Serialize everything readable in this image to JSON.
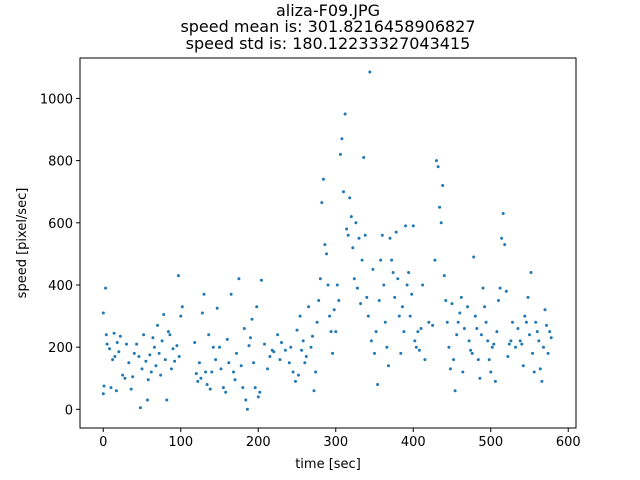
{
  "chart_data": {
    "type": "scatter",
    "title_lines": [
      "aliza-F09.JPG",
      "speed mean is: 301.8216458906827",
      "speed std is: 180.12233327043415"
    ],
    "xlabel": "time [sec]",
    "ylabel": "speed [pixel/sec]",
    "xlim": [
      -30,
      610
    ],
    "ylim": [
      -60,
      1130
    ],
    "xticks": [
      0,
      100,
      200,
      300,
      400,
      500,
      600
    ],
    "yticks": [
      0,
      200,
      400,
      600,
      800,
      1000
    ],
    "grid": false,
    "marker_color": "#1f77b4",
    "series": [
      {
        "points": [
          [
            0,
            50
          ],
          [
            0,
            310
          ],
          [
            1,
            75
          ],
          [
            3,
            390
          ],
          [
            4,
            240
          ],
          [
            5,
            210
          ],
          [
            8,
            195
          ],
          [
            10,
            70
          ],
          [
            12,
            160
          ],
          [
            14,
            245
          ],
          [
            15,
            170
          ],
          [
            17,
            60
          ],
          [
            18,
            215
          ],
          [
            20,
            185
          ],
          [
            22,
            235
          ],
          [
            25,
            110
          ],
          [
            28,
            100
          ],
          [
            30,
            210
          ],
          [
            33,
            150
          ],
          [
            36,
            65
          ],
          [
            38,
            105
          ],
          [
            40,
            180
          ],
          [
            43,
            210
          ],
          [
            46,
            170
          ],
          [
            48,
            5
          ],
          [
            50,
            130
          ],
          [
            52,
            240
          ],
          [
            55,
            155
          ],
          [
            57,
            30
          ],
          [
            58,
            95
          ],
          [
            60,
            175
          ],
          [
            62,
            120
          ],
          [
            64,
            230
          ],
          [
            66,
            200
          ],
          [
            68,
            140
          ],
          [
            70,
            270
          ],
          [
            72,
            180
          ],
          [
            74,
            110
          ],
          [
            76,
            220
          ],
          [
            78,
            305
          ],
          [
            80,
            160
          ],
          [
            82,
            30
          ],
          [
            84,
            250
          ],
          [
            86,
            240
          ],
          [
            88,
            130
          ],
          [
            90,
            195
          ],
          [
            92,
            155
          ],
          [
            95,
            205
          ],
          [
            97,
            430
          ],
          [
            98,
            170
          ],
          [
            100,
            300
          ],
          [
            102,
            330
          ],
          [
            118,
            215
          ],
          [
            120,
            115
          ],
          [
            122,
            90
          ],
          [
            124,
            150
          ],
          [
            126,
            100
          ],
          [
            128,
            310
          ],
          [
            130,
            370
          ],
          [
            132,
            120
          ],
          [
            134,
            80
          ],
          [
            136,
            240
          ],
          [
            138,
            65
          ],
          [
            140,
            120
          ],
          [
            142,
            200
          ],
          [
            145,
            160
          ],
          [
            147,
            325
          ],
          [
            150,
            200
          ],
          [
            152,
            130
          ],
          [
            155,
            70
          ],
          [
            158,
            55
          ],
          [
            160,
            225
          ],
          [
            162,
            150
          ],
          [
            165,
            370
          ],
          [
            168,
            120
          ],
          [
            170,
            95
          ],
          [
            172,
            180
          ],
          [
            175,
            420
          ],
          [
            178,
            140
          ],
          [
            180,
            70
          ],
          [
            182,
            260
          ],
          [
            184,
            30
          ],
          [
            186,
            0
          ],
          [
            188,
            205
          ],
          [
            190,
            230
          ],
          [
            192,
            290
          ],
          [
            194,
            150
          ],
          [
            196,
            70
          ],
          [
            198,
            330
          ],
          [
            200,
            40
          ],
          [
            202,
            55
          ],
          [
            204,
            415
          ],
          [
            208,
            210
          ],
          [
            212,
            130
          ],
          [
            215,
            170
          ],
          [
            218,
            190
          ],
          [
            220,
            185
          ],
          [
            225,
            240
          ],
          [
            228,
            160
          ],
          [
            230,
            215
          ],
          [
            235,
            190
          ],
          [
            240,
            150
          ],
          [
            242,
            200
          ],
          [
            245,
            120
          ],
          [
            248,
            90
          ],
          [
            250,
            255
          ],
          [
            252,
            110
          ],
          [
            254,
            300
          ],
          [
            256,
            190
          ],
          [
            258,
            220
          ],
          [
            260,
            150
          ],
          [
            262,
            170
          ],
          [
            265,
            330
          ],
          [
            268,
            200
          ],
          [
            270,
            235
          ],
          [
            272,
            60
          ],
          [
            274,
            120
          ],
          [
            276,
            280
          ],
          [
            278,
            350
          ],
          [
            280,
            420
          ],
          [
            282,
            665
          ],
          [
            284,
            740
          ],
          [
            286,
            530
          ],
          [
            288,
            500
          ],
          [
            290,
            400
          ],
          [
            292,
            300
          ],
          [
            294,
            250
          ],
          [
            296,
            180
          ],
          [
            298,
            320
          ],
          [
            300,
            250
          ],
          [
            302,
            400
          ],
          [
            304,
            350
          ],
          [
            306,
            820
          ],
          [
            308,
            870
          ],
          [
            310,
            700
          ],
          [
            312,
            950
          ],
          [
            314,
            580
          ],
          [
            316,
            560
          ],
          [
            318,
            680
          ],
          [
            320,
            620
          ],
          [
            322,
            520
          ],
          [
            324,
            420
          ],
          [
            326,
            600
          ],
          [
            328,
            390
          ],
          [
            330,
            550
          ],
          [
            332,
            340
          ],
          [
            334,
            480
          ],
          [
            336,
            810
          ],
          [
            338,
            560
          ],
          [
            340,
            360
          ],
          [
            342,
            300
          ],
          [
            344,
            1085
          ],
          [
            346,
            220
          ],
          [
            348,
            450
          ],
          [
            350,
            180
          ],
          [
            352,
            250
          ],
          [
            354,
            80
          ],
          [
            356,
            350
          ],
          [
            358,
            480
          ],
          [
            360,
            560
          ],
          [
            362,
            400
          ],
          [
            364,
            280
          ],
          [
            366,
            200
          ],
          [
            368,
            140
          ],
          [
            370,
            550
          ],
          [
            372,
            480
          ],
          [
            374,
            440
          ],
          [
            376,
            360
          ],
          [
            378,
            570
          ],
          [
            380,
            420
          ],
          [
            382,
            300
          ],
          [
            384,
            180
          ],
          [
            386,
            330
          ],
          [
            388,
            250
          ],
          [
            390,
            590
          ],
          [
            392,
            400
          ],
          [
            394,
            440
          ],
          [
            396,
            300
          ],
          [
            398,
            370
          ],
          [
            400,
            590
          ],
          [
            402,
            220
          ],
          [
            404,
            200
          ],
          [
            406,
            250
          ],
          [
            408,
            190
          ],
          [
            410,
            260
          ],
          [
            412,
            400
          ],
          [
            415,
            160
          ],
          [
            420,
            280
          ],
          [
            425,
            270
          ],
          [
            428,
            480
          ],
          [
            430,
            800
          ],
          [
            432,
            780
          ],
          [
            434,
            650
          ],
          [
            436,
            600
          ],
          [
            438,
            720
          ],
          [
            440,
            430
          ],
          [
            442,
            350
          ],
          [
            444,
            280
          ],
          [
            446,
            200
          ],
          [
            448,
            130
          ],
          [
            450,
            340
          ],
          [
            452,
            160
          ],
          [
            454,
            60
          ],
          [
            456,
            240
          ],
          [
            458,
            280
          ],
          [
            460,
            310
          ],
          [
            462,
            360
          ],
          [
            464,
            120
          ],
          [
            466,
            260
          ],
          [
            470,
            330
          ],
          [
            472,
            220
          ],
          [
            474,
            190
          ],
          [
            476,
            180
          ],
          [
            478,
            490
          ],
          [
            480,
            300
          ],
          [
            482,
            260
          ],
          [
            484,
            160
          ],
          [
            486,
            100
          ],
          [
            488,
            240
          ],
          [
            490,
            390
          ],
          [
            492,
            330
          ],
          [
            494,
            280
          ],
          [
            496,
            220
          ],
          [
            498,
            160
          ],
          [
            500,
            120
          ],
          [
            502,
            200
          ],
          [
            504,
            210
          ],
          [
            506,
            90
          ],
          [
            508,
            250
          ],
          [
            510,
            350
          ],
          [
            512,
            390
          ],
          [
            514,
            550
          ],
          [
            516,
            630
          ],
          [
            518,
            530
          ],
          [
            520,
            380
          ],
          [
            522,
            170
          ],
          [
            524,
            210
          ],
          [
            526,
            220
          ],
          [
            528,
            280
          ],
          [
            532,
            200
          ],
          [
            535,
            260
          ],
          [
            538,
            220
          ],
          [
            540,
            210
          ],
          [
            542,
            140
          ],
          [
            544,
            300
          ],
          [
            546,
            280
          ],
          [
            548,
            360
          ],
          [
            550,
            240
          ],
          [
            552,
            440
          ],
          [
            554,
            180
          ],
          [
            556,
            120
          ],
          [
            558,
            280
          ],
          [
            560,
            250
          ],
          [
            562,
            220
          ],
          [
            564,
            130
          ],
          [
            566,
            90
          ],
          [
            568,
            200
          ],
          [
            570,
            320
          ],
          [
            572,
            270
          ],
          [
            574,
            180
          ],
          [
            576,
            250
          ],
          [
            578,
            230
          ]
        ]
      }
    ]
  }
}
